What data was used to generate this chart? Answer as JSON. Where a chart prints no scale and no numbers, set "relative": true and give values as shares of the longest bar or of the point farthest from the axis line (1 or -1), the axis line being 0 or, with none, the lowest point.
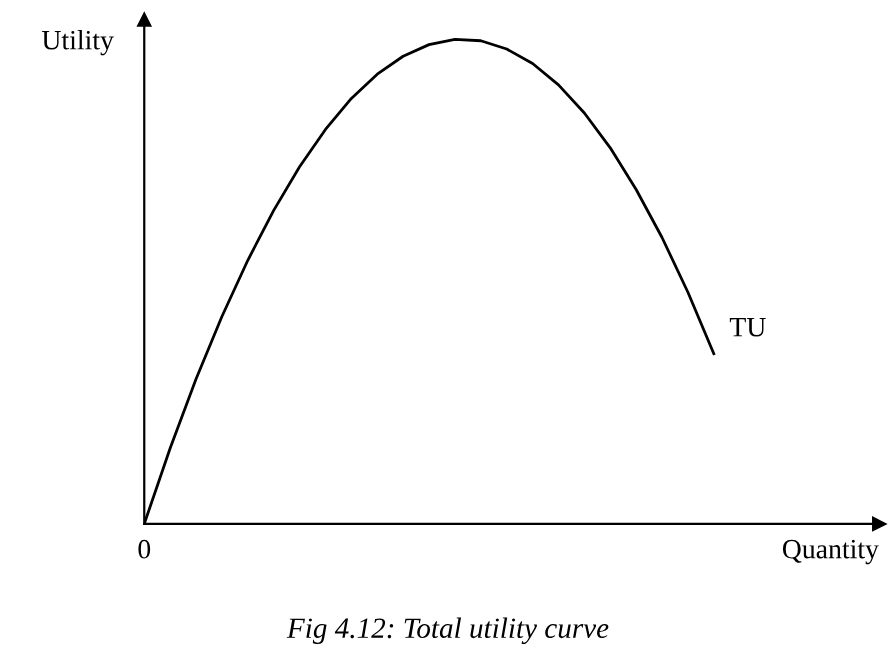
{
  "chart_data": {
    "type": "line",
    "title": "Fig 4.12: Total utility curve",
    "xlabel": "Quantity",
    "ylabel": "Utility",
    "relative": true,
    "annotations": [
      "0"
    ],
    "categories": [
      null,
      null,
      null,
      null,
      null,
      null,
      null,
      null,
      null,
      null,
      null,
      null,
      null,
      null,
      null,
      null,
      null,
      null,
      null,
      null,
      null,
      null,
      null
    ],
    "series": [
      {
        "name": "TU",
        "color": "#000000",
        "values": [
          0,
          0.156,
          0.299,
          0.428,
          0.544,
          0.647,
          0.737,
          0.814,
          0.878,
          0.928,
          0.965,
          0.989,
          1.0,
          0.997,
          0.98,
          0.95,
          0.906,
          0.848,
          0.776,
          0.69,
          0.591,
          0.478,
          0.351
        ]
      }
    ],
    "grid": false,
    "legend": false
  }
}
